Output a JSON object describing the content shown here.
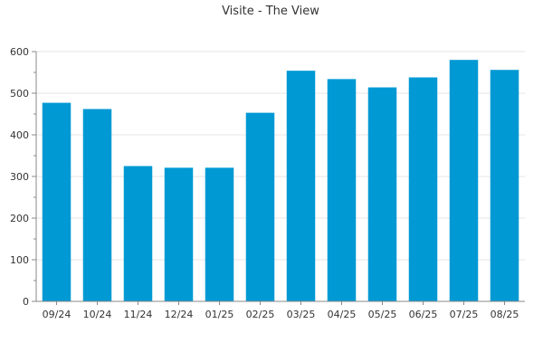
{
  "chart_data": {
    "type": "bar",
    "title": "Visite - The View",
    "xlabel": "",
    "ylabel": "",
    "categories": [
      "09/24",
      "10/24",
      "11/24",
      "12/24",
      "01/25",
      "02/25",
      "03/25",
      "04/25",
      "05/25",
      "06/25",
      "07/25",
      "08/25"
    ],
    "values": [
      477,
      462,
      325,
      321,
      321,
      453,
      554,
      534,
      514,
      538,
      580,
      556
    ],
    "ylim": [
      0,
      600
    ],
    "yticks": [
      0,
      100,
      200,
      300,
      400,
      500,
      600
    ],
    "grid": true,
    "legend": "none",
    "colors": {
      "bar": "#0099d4",
      "grid": "#e6e6e6",
      "axis": "#888888",
      "text": "#333333"
    }
  }
}
